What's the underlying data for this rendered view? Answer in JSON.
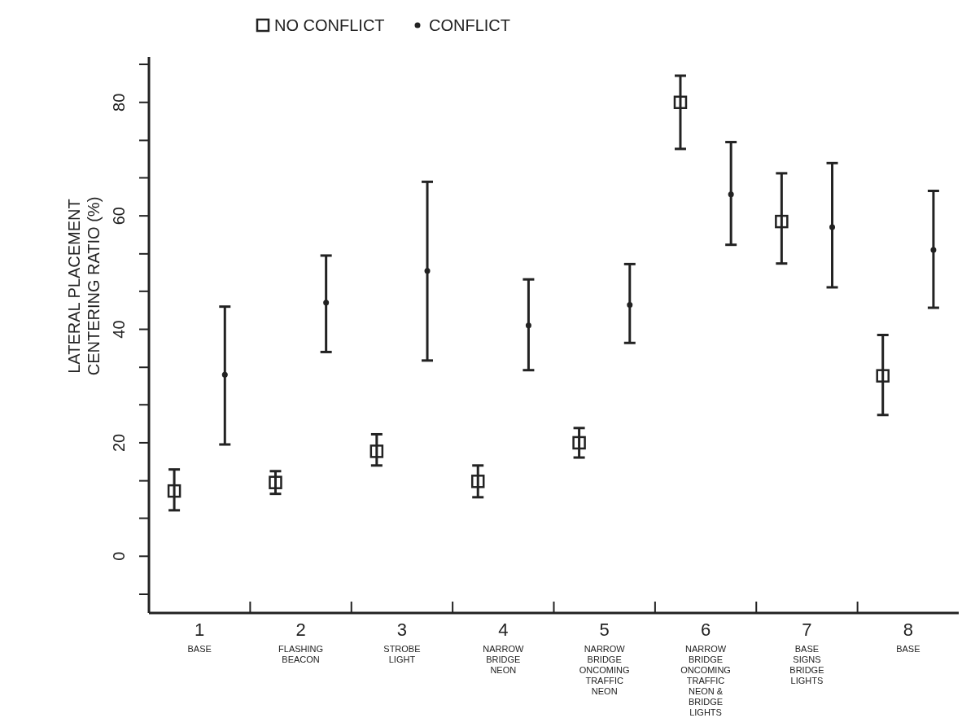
{
  "chart_data": {
    "type": "scatter",
    "ylabel": "LATERAL PLACEMENT\nCENTERING RATIO (%)",
    "categories": [
      "1\nBASE",
      "2\nFLASHING\nBEACON",
      "3\nSTROBE\nLIGHT",
      "4\nNARROW\nBRIDGE\nNEON",
      "5\nNARROW\nBRIDGE\nONCOMING\nTRAFFIC\nNEON",
      "6\nNARROW\nBRIDGE\nONCOMING\nTRAFFIC\nNEON &\nBRIDGE\nLIGHTS",
      "7\nBASE\nSIGNS\nBRIDGE\nLIGHTS",
      "8\nBASE"
    ],
    "series": [
      {
        "name": "NO CONFLICT",
        "color": "#222222",
        "marker": "square",
        "values": [
          11.5,
          13,
          18.5,
          13.2,
          20,
          80,
          59,
          31.8
        ],
        "errors": [
          [
            8.1,
            15.3
          ],
          [
            11,
            15
          ],
          [
            16,
            21.5
          ],
          [
            10.4,
            16
          ],
          [
            17.4,
            22.6
          ],
          [
            71.8,
            84.7
          ],
          [
            51.6,
            67.5
          ],
          [
            24.9,
            39
          ]
        ]
      },
      {
        "name": "CONFLICT",
        "color": "#222222",
        "marker": "circle",
        "values": [
          32,
          44.7,
          50.3,
          40.7,
          44.3,
          63.8,
          58,
          54
        ],
        "errors": [
          [
            19.7,
            44
          ],
          [
            36,
            53
          ],
          [
            34.5,
            66
          ],
          [
            32.8,
            48.8
          ],
          [
            37.6,
            51.5
          ],
          [
            54.9,
            73
          ],
          [
            47.4,
            69.3
          ],
          [
            43.8,
            64.4
          ]
        ]
      }
    ],
    "ylim": [
      -10,
      88
    ],
    "yticks": [
      {
        "value": -6.7,
        "label": null
      },
      0,
      {
        "value": 6.7,
        "label": null
      },
      {
        "value": 13.3,
        "label": null
      },
      20,
      {
        "value": 26.7,
        "label": null
      },
      {
        "value": 33.3,
        "label": null
      },
      40,
      {
        "value": 46.7,
        "label": null
      },
      {
        "value": 53.3,
        "label": null
      },
      60,
      {
        "value": 66.7,
        "label": null
      },
      {
        "value": 73.3,
        "label": null
      },
      80,
      {
        "value": 86.7,
        "label": null
      }
    ],
    "legend": "top",
    "grid": false
  }
}
